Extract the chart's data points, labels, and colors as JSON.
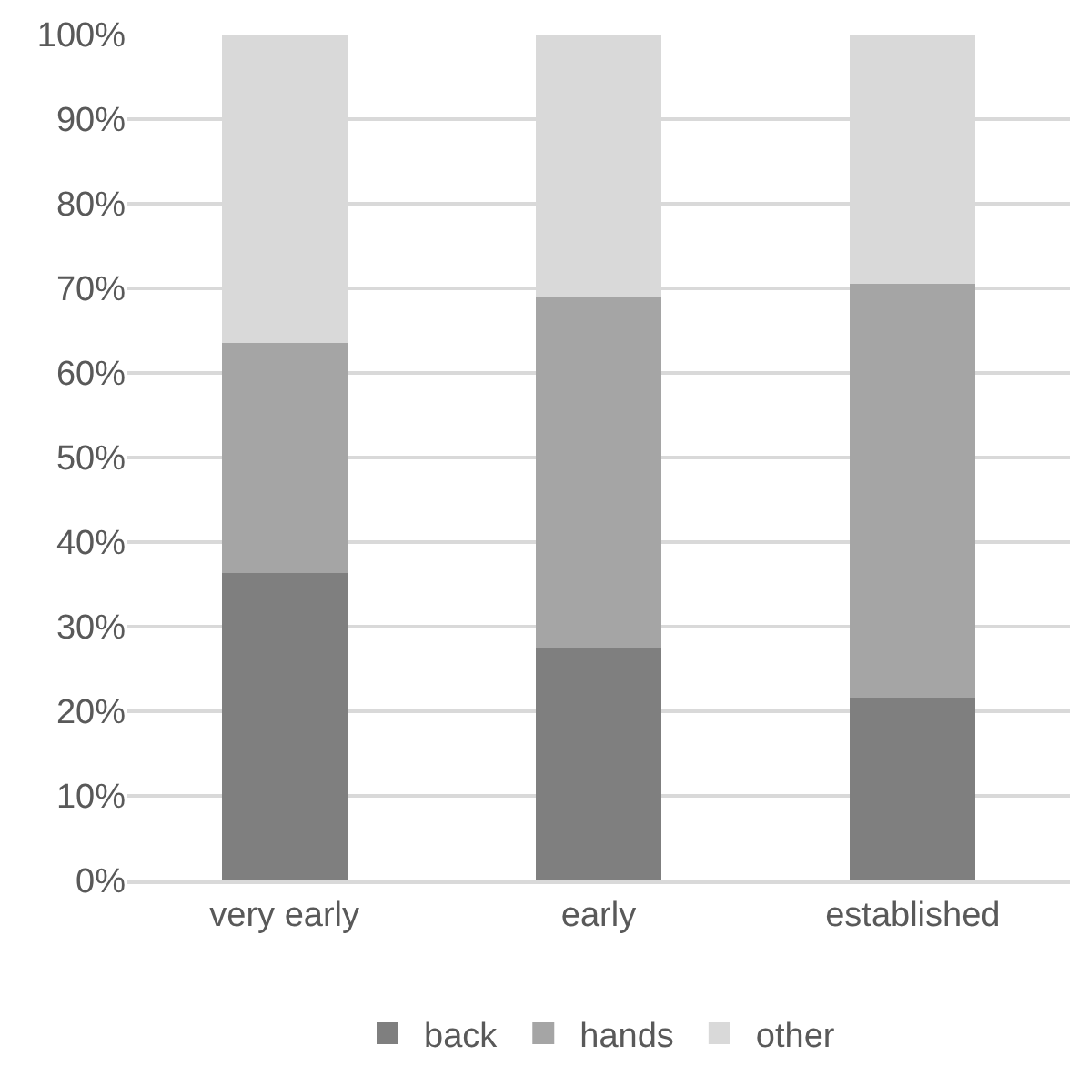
{
  "chart_data": {
    "type": "bar",
    "stacked": true,
    "categories": [
      "very early",
      "early",
      "established"
    ],
    "series": [
      {
        "name": "back",
        "color": "#7f7f7f",
        "values": [
          36.3,
          27.5,
          21.6
        ]
      },
      {
        "name": "hands",
        "color": "#a5a5a5",
        "values": [
          27.3,
          41.4,
          48.9
        ]
      },
      {
        "name": "other",
        "color": "#d9d9d9",
        "values": [
          36.4,
          31.1,
          29.5
        ]
      }
    ],
    "ylim": [
      0,
      100
    ],
    "yticks": [
      {
        "value": 0,
        "label": "0%"
      },
      {
        "value": 10,
        "label": "10%"
      },
      {
        "value": 20,
        "label": "20%"
      },
      {
        "value": 30,
        "label": "30%"
      },
      {
        "value": 40,
        "label": "40%"
      },
      {
        "value": 50,
        "label": "50%"
      },
      {
        "value": 60,
        "label": "60%"
      },
      {
        "value": 70,
        "label": "70%"
      },
      {
        "value": 80,
        "label": "80%"
      },
      {
        "value": 90,
        "label": "90%"
      },
      {
        "value": 100,
        "label": "100%"
      }
    ],
    "grid": "y",
    "legend": "bottom"
  }
}
